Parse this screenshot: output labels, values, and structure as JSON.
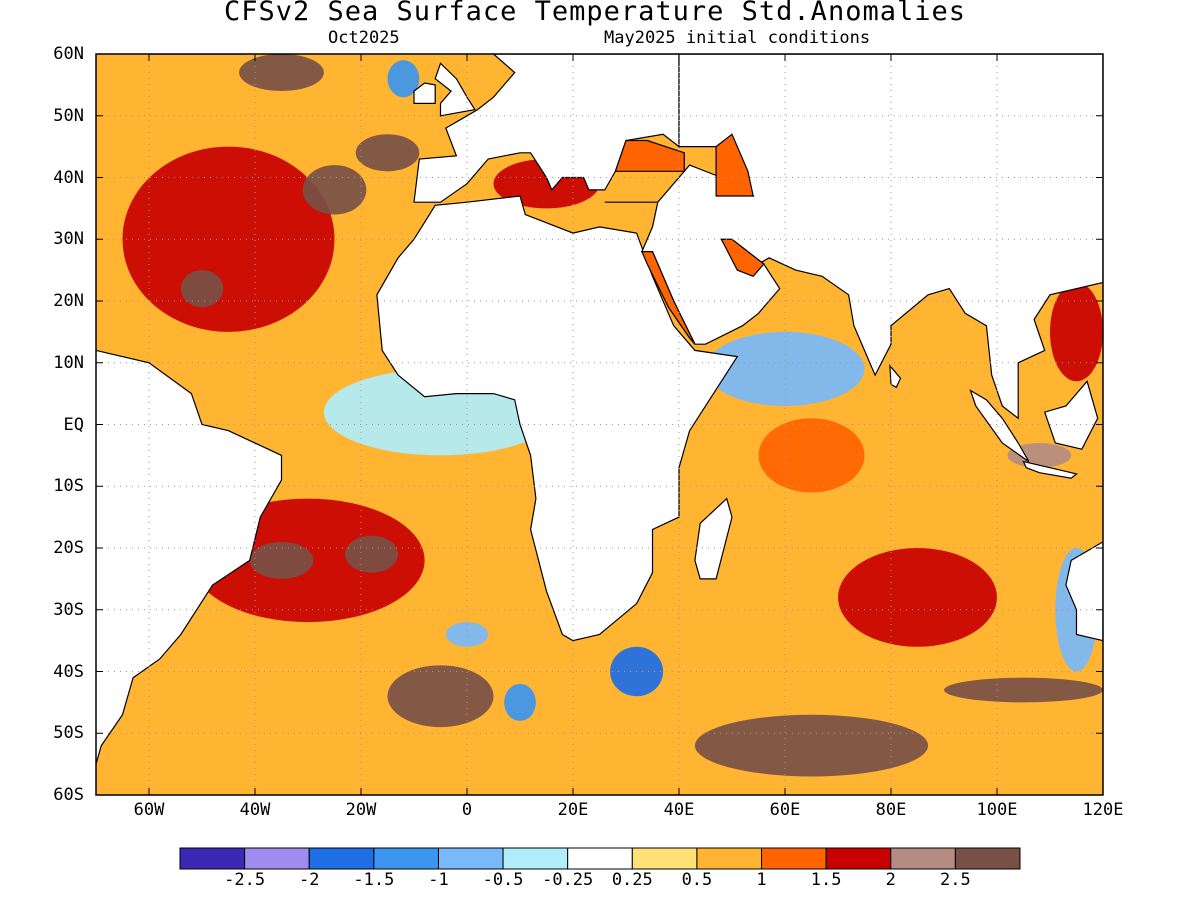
{
  "title": "CFSv2 Sea Surface Temperature Std.Anomalies",
  "target_month": "Oct2025",
  "initial_conditions": "May2025 initial conditions",
  "map": {
    "lon_range": [
      -70,
      120
    ],
    "lat_range": [
      -60,
      60
    ],
    "lat_ticks": [
      {
        "value": 60,
        "label": "60N"
      },
      {
        "value": 50,
        "label": "50N"
      },
      {
        "value": 40,
        "label": "40N"
      },
      {
        "value": 30,
        "label": "30N"
      },
      {
        "value": 20,
        "label": "20N"
      },
      {
        "value": 10,
        "label": "10N"
      },
      {
        "value": 0,
        "label": "EQ"
      },
      {
        "value": -10,
        "label": "10S"
      },
      {
        "value": -20,
        "label": "20S"
      },
      {
        "value": -30,
        "label": "30S"
      },
      {
        "value": -40,
        "label": "40S"
      },
      {
        "value": -50,
        "label": "50S"
      },
      {
        "value": -60,
        "label": "60S"
      }
    ],
    "lon_ticks": [
      {
        "value": -60,
        "label": "60W"
      },
      {
        "value": -40,
        "label": "40W"
      },
      {
        "value": -20,
        "label": "20W"
      },
      {
        "value": 0,
        "label": "0"
      },
      {
        "value": 20,
        "label": "20E"
      },
      {
        "value": 40,
        "label": "40E"
      },
      {
        "value": 60,
        "label": "60E"
      },
      {
        "value": 80,
        "label": "80E"
      },
      {
        "value": 100,
        "label": "100E"
      },
      {
        "value": 120,
        "label": "120E"
      }
    ],
    "grid": true,
    "grid_style": "dotted"
  },
  "colorbar": {
    "colors": [
      "#3c28b4",
      "#a08cf0",
      "#1e6ee6",
      "#3c96f0",
      "#78b9fa",
      "#afeefa",
      "#ffffff",
      "#ffe178",
      "#ffb432",
      "#ff6400",
      "#c80000",
      "#b48c82",
      "#785046"
    ],
    "labels": [
      "-2.5",
      "-2",
      "-1.5",
      "-1",
      "-0.5",
      "-0.25",
      "0.25",
      "0.5",
      "1",
      "1.5",
      "2",
      "2.5"
    ]
  },
  "anomaly_regions": [
    {
      "level": 1.5,
      "lon": -45,
      "lat": 30,
      "rx": 20,
      "ry": 15
    },
    {
      "level": 2.5,
      "lon": -50,
      "lat": 22,
      "rx": 4,
      "ry": 3
    },
    {
      "level": 2.5,
      "lon": -25,
      "lat": 38,
      "rx": 6,
      "ry": 4
    },
    {
      "level": 2.5,
      "lon": -15,
      "lat": 44,
      "rx": 6,
      "ry": 3
    },
    {
      "level": 2.5,
      "lon": -35,
      "lat": 57,
      "rx": 8,
      "ry": 3
    },
    {
      "level": -1.5,
      "lon": -12,
      "lat": 56,
      "rx": 3,
      "ry": 3
    },
    {
      "level": 1.5,
      "lon": 15,
      "lat": 39,
      "rx": 10,
      "ry": 4
    },
    {
      "level": -0.5,
      "lon": -5,
      "lat": 2,
      "rx": 22,
      "ry": 7
    },
    {
      "level": -1,
      "lon": 60,
      "lat": 9,
      "rx": 15,
      "ry": 6
    },
    {
      "level": 1,
      "lon": 65,
      "lat": -5,
      "rx": 10,
      "ry": 6
    },
    {
      "level": 1.5,
      "lon": -30,
      "lat": -22,
      "rx": 22,
      "ry": 10
    },
    {
      "level": 2.5,
      "lon": -35,
      "lat": -22,
      "rx": 6,
      "ry": 3
    },
    {
      "level": 2.5,
      "lon": -18,
      "lat": -21,
      "rx": 5,
      "ry": 3
    },
    {
      "level": -1,
      "lon": 0,
      "lat": -34,
      "rx": 4,
      "ry": 2
    },
    {
      "level": -2,
      "lon": 32,
      "lat": -40,
      "rx": 5,
      "ry": 4
    },
    {
      "level": -1.5,
      "lon": 10,
      "lat": -45,
      "rx": 3,
      "ry": 3
    },
    {
      "level": 2.5,
      "lon": -5,
      "lat": -44,
      "rx": 10,
      "ry": 5
    },
    {
      "level": 2.5,
      "lon": 65,
      "lat": -52,
      "rx": 22,
      "ry": 5
    },
    {
      "level": 2.5,
      "lon": 105,
      "lat": -43,
      "rx": 15,
      "ry": 2
    },
    {
      "level": 1.5,
      "lon": 85,
      "lat": -28,
      "rx": 15,
      "ry": 8
    },
    {
      "level": 2,
      "lon": 108,
      "lat": -5,
      "rx": 6,
      "ry": 2
    },
    {
      "level": 1.5,
      "lon": 115,
      "lat": 15,
      "rx": 5,
      "ry": 8
    },
    {
      "level": -1,
      "lon": 115,
      "lat": -30,
      "rx": 4,
      "ry": 10
    }
  ]
}
